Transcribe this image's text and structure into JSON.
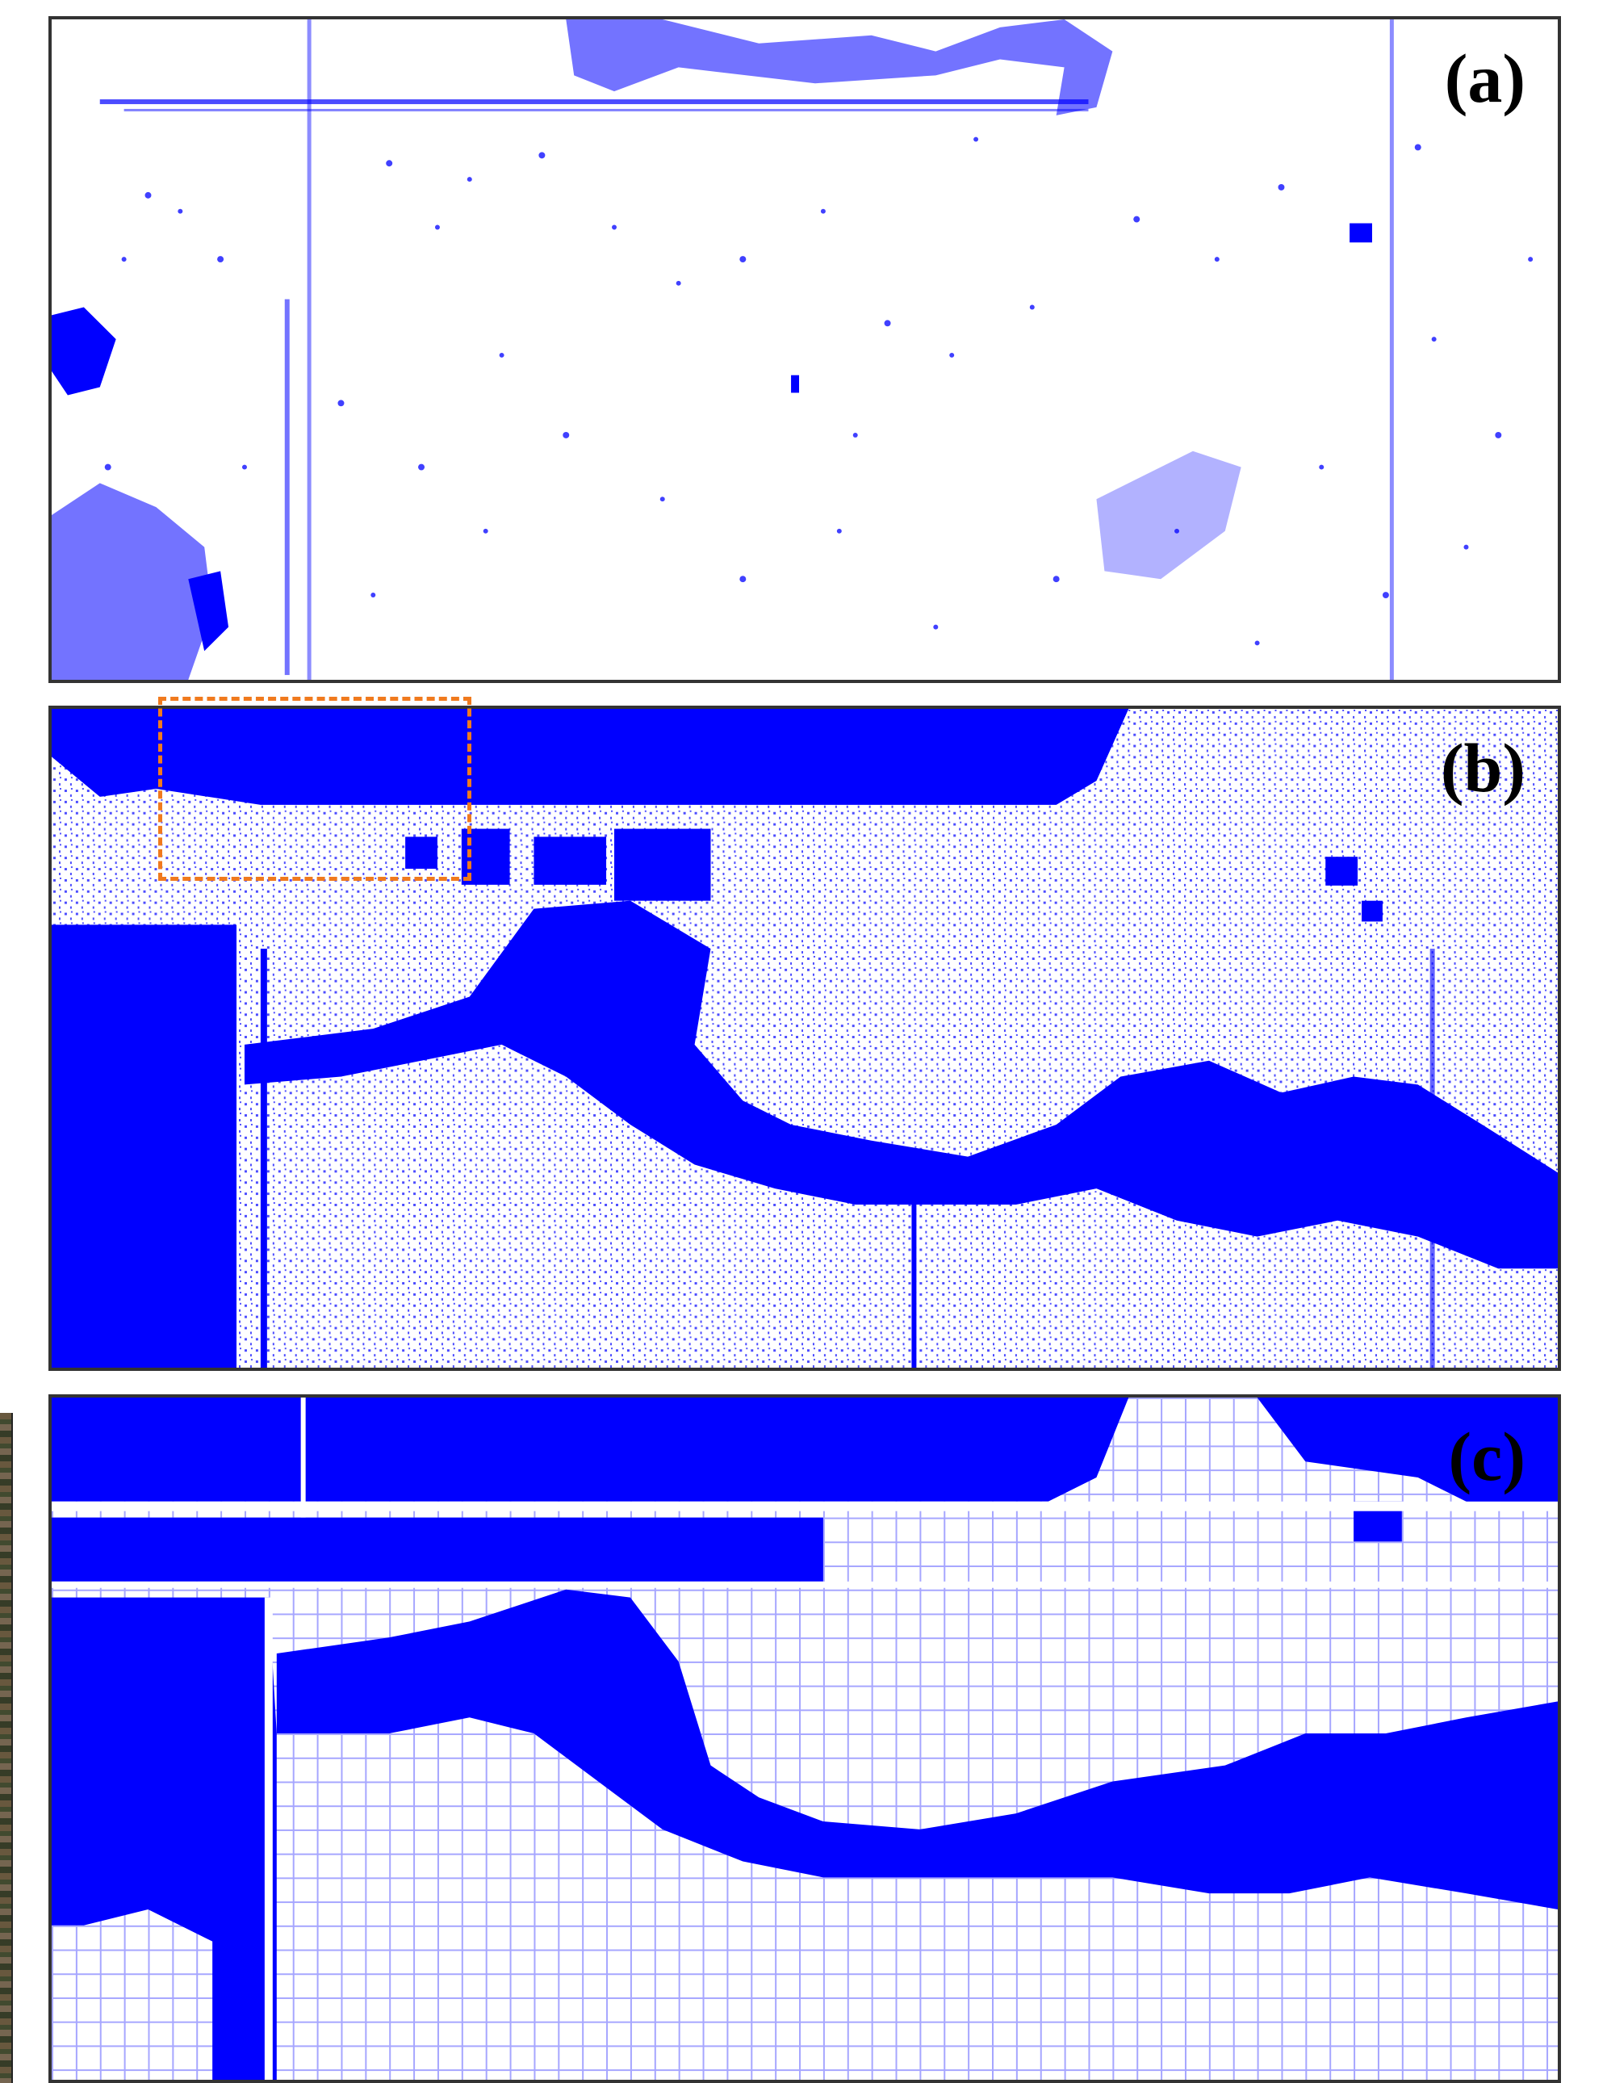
{
  "panels": [
    {
      "id": "a",
      "label": "(a)"
    },
    {
      "id": "b",
      "label": "(b)"
    },
    {
      "id": "c",
      "label": "(c)"
    }
  ],
  "colors": {
    "water_mask": "#0000ff",
    "background": "#ffffff",
    "highlight_box": "#f07a1e",
    "frame": "#333333"
  }
}
